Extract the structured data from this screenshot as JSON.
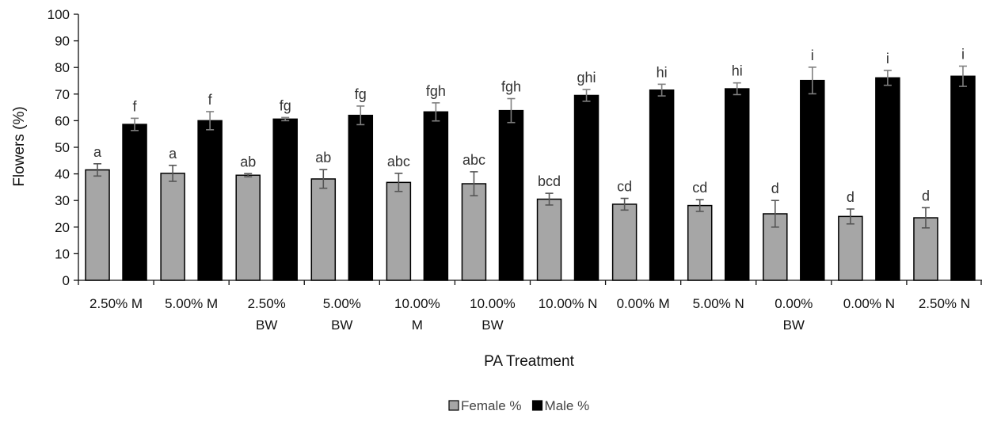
{
  "chart_data": {
    "type": "bar",
    "xlabel": "PA Treatment",
    "ylabel": "Flowers (%)",
    "ylim": [
      0,
      100
    ],
    "yticks": [
      0,
      10,
      20,
      30,
      40,
      50,
      60,
      70,
      80,
      90,
      100
    ],
    "grid": false,
    "legend_position": "bottom-center",
    "categories": [
      [
        "2.50% M"
      ],
      [
        "5.00% M"
      ],
      [
        "2.50%",
        "BW"
      ],
      [
        "5.00%",
        "BW"
      ],
      [
        "10.00%",
        "M"
      ],
      [
        "10.00%",
        "BW"
      ],
      [
        "10.00% N"
      ],
      [
        "0.00% M"
      ],
      [
        "5.00% N"
      ],
      [
        "0.00%",
        "BW"
      ],
      [
        "0.00% N"
      ],
      [
        "2.50% N"
      ]
    ],
    "series": [
      {
        "name": "Female %",
        "color": "#a6a6a6",
        "values": [
          41.5,
          40.2,
          39.5,
          38.1,
          36.8,
          36.3,
          30.5,
          28.6,
          28.1,
          25.0,
          24.0,
          23.5
        ],
        "errors": [
          2.3,
          3.0,
          0.6,
          3.5,
          3.4,
          4.5,
          2.2,
          2.2,
          2.2,
          5.0,
          2.8,
          3.8
        ],
        "letters": [
          "a",
          "a",
          "ab",
          "ab",
          "abc",
          "abc",
          "bcd",
          "cd",
          "cd",
          "d",
          "d",
          "d"
        ]
      },
      {
        "name": "Male %",
        "color": "#000000",
        "values": [
          58.6,
          60.0,
          60.6,
          62.0,
          63.3,
          63.8,
          69.5,
          71.5,
          72.0,
          75.1,
          76.1,
          76.7
        ],
        "errors": [
          2.3,
          3.4,
          0.6,
          3.5,
          3.4,
          4.5,
          2.2,
          2.2,
          2.2,
          5.0,
          2.8,
          3.8
        ],
        "letters": [
          "f",
          "f",
          "fg",
          "fg",
          "fgh",
          "fgh",
          "ghi",
          "hi",
          "hi",
          "i",
          "i",
          "i"
        ]
      }
    ]
  }
}
